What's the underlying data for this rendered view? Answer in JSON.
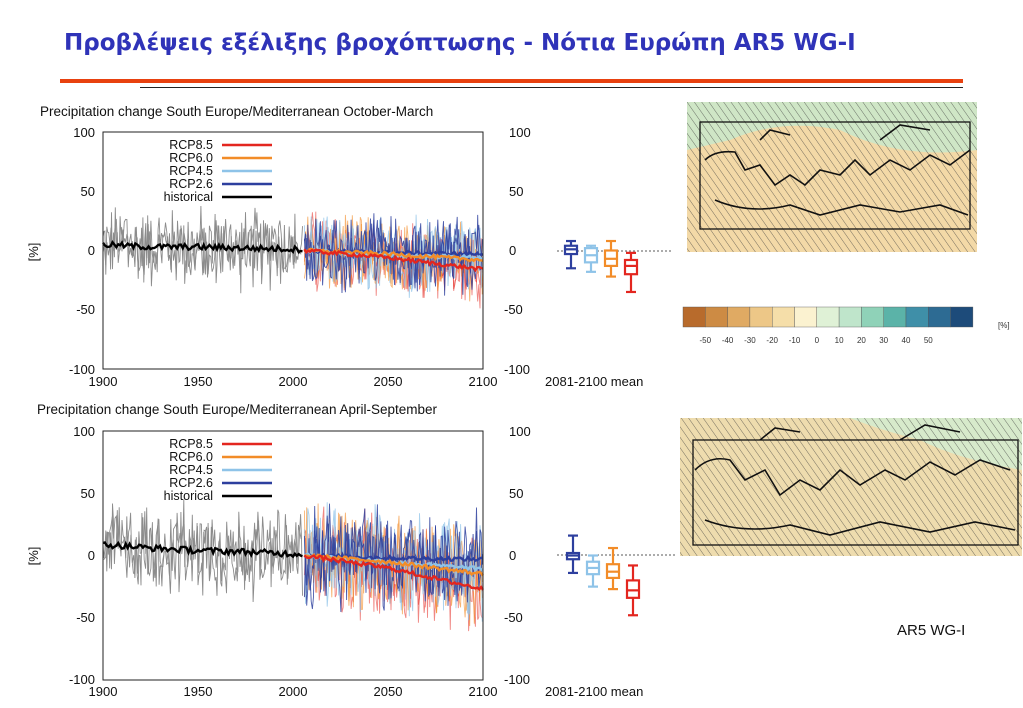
{
  "page": {
    "title": "Προβλέψεις εξέλιξης βροχόπτωσης - Νότια Ευρώπη AR5 WG-I",
    "source_note": "AR5 WG-I"
  },
  "colors": {
    "title": "#2f33b8",
    "rule": "#e8410f",
    "historical": "#000000",
    "historical_spread": "#8c8c8c",
    "rcp85": "#e3261f",
    "rcp60": "#f28c28",
    "rcp45": "#8ec3e8",
    "rcp26": "#2d3f9e"
  },
  "chart_data": [
    {
      "type": "line",
      "title": "Precipitation change South Europe/Mediterranean October-March",
      "ylabel": "[%]",
      "xlabel": "",
      "xlim": [
        1900,
        2100
      ],
      "ylim": [
        -100,
        100
      ],
      "xticks": [
        1900,
        1950,
        2000,
        2050,
        2100
      ],
      "yticks": [
        100,
        50,
        0,
        -50,
        -100
      ],
      "grid": false,
      "legend_position": "top-left",
      "series": [
        {
          "name": "historical",
          "x": [
            1900,
            1925,
            1950,
            1975,
            2005
          ],
          "values": [
            5,
            3,
            3,
            2,
            1
          ]
        },
        {
          "name": "RCP2.6",
          "x": [
            2006,
            2050,
            2100
          ],
          "values": [
            0,
            -2,
            -3
          ]
        },
        {
          "name": "RCP4.5",
          "x": [
            2006,
            2050,
            2100
          ],
          "values": [
            0,
            -4,
            -6
          ]
        },
        {
          "name": "RCP6.0",
          "x": [
            2006,
            2050,
            2100
          ],
          "values": [
            0,
            -3,
            -8
          ]
        },
        {
          "name": "RCP8.5",
          "x": [
            2006,
            2050,
            2100
          ],
          "values": [
            0,
            -6,
            -16
          ]
        }
      ],
      "mean_box_label": "2081-2100 mean",
      "mean_boxes": [
        {
          "name": "RCP2.6",
          "median": 1,
          "q1": -3,
          "q3": 4,
          "min": -15,
          "max": 8
        },
        {
          "name": "RCP4.5",
          "median": -4,
          "q1": -10,
          "q3": 2,
          "min": -18,
          "max": 4
        },
        {
          "name": "RCP6.0",
          "median": -7,
          "q1": -13,
          "q3": 0,
          "min": -22,
          "max": 8
        },
        {
          "name": "RCP8.5",
          "median": -13,
          "q1": -20,
          "q3": -8,
          "min": -35,
          "max": -2
        }
      ]
    },
    {
      "type": "line",
      "title": "Precipitation change South Europe/Mediterranean April-September",
      "ylabel": "[%]",
      "xlabel": "",
      "xlim": [
        1900,
        2100
      ],
      "ylim": [
        -100,
        100
      ],
      "xticks": [
        1900,
        1950,
        2000,
        2050,
        2100
      ],
      "yticks": [
        100,
        50,
        0,
        -50,
        -100
      ],
      "grid": false,
      "legend_position": "top-left",
      "series": [
        {
          "name": "historical",
          "x": [
            1900,
            1925,
            1950,
            1975,
            2005
          ],
          "values": [
            9,
            6,
            4,
            3,
            1
          ]
        },
        {
          "name": "RCP2.6",
          "x": [
            2006,
            2050,
            2100
          ],
          "values": [
            0,
            -2,
            -3
          ]
        },
        {
          "name": "RCP4.5",
          "x": [
            2006,
            2050,
            2100
          ],
          "values": [
            0,
            -5,
            -11
          ]
        },
        {
          "name": "RCP6.0",
          "x": [
            2006,
            2050,
            2100
          ],
          "values": [
            0,
            -5,
            -15
          ]
        },
        {
          "name": "RCP8.5",
          "x": [
            2006,
            2050,
            2100
          ],
          "values": [
            0,
            -10,
            -27
          ]
        }
      ],
      "mean_box_label": "2081-2100 mean",
      "mean_boxes": [
        {
          "name": "RCP2.6",
          "median": 0,
          "q1": -3,
          "q3": 2,
          "min": -14,
          "max": 16
        },
        {
          "name": "RCP4.5",
          "median": -10,
          "q1": -15,
          "q3": -5,
          "min": -25,
          "max": 0
        },
        {
          "name": "RCP6.0",
          "median": -13,
          "q1": -18,
          "q3": -7,
          "min": -27,
          "max": 6
        },
        {
          "name": "RCP8.5",
          "median": -28,
          "q1": -34,
          "q3": -20,
          "min": -48,
          "max": -8
        }
      ]
    }
  ],
  "colorbar": {
    "labels": [
      "-50",
      "-40",
      "-30",
      "-20",
      "-10",
      "0",
      "10",
      "20",
      "30",
      "40",
      "50"
    ],
    "unit": "[%]",
    "colors": [
      "#b86b2c",
      "#cd8b44",
      "#e0aa63",
      "#edc787",
      "#f5dea9",
      "#fbf2d0",
      "#dff1d6",
      "#bfe5cb",
      "#8fd2b8",
      "#5bb3a8",
      "#3f8fa8",
      "#2d6b93",
      "#1d4b7a"
    ]
  },
  "maps": {
    "top_fill": "#f3d9a7",
    "top_north_fill": "#cfe6c6",
    "bottom_fill": "#eedcae",
    "bottom_north_fill": "#d7eacb"
  }
}
